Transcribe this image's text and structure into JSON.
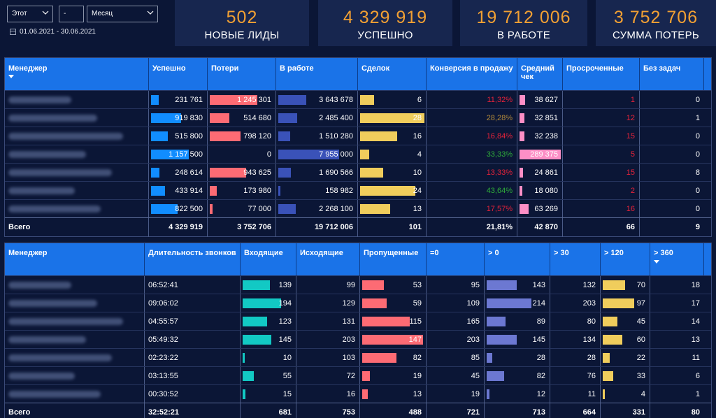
{
  "filters": {
    "period_type": "Этот",
    "period_count": "-",
    "period_unit": "Месяц",
    "date_range": "01.06.2021 - 30.06.2021"
  },
  "kpis": [
    {
      "value": "502",
      "label": "НОВЫЕ ЛИДЫ"
    },
    {
      "value": "4 329 919",
      "label": "УСПЕШНО"
    },
    {
      "value": "19 712 006",
      "label": "В РАБОТЕ"
    },
    {
      "value": "3 752 706",
      "label": "СУММА ПОТЕРЬ"
    }
  ],
  "colors": {
    "accent_orange": "#f2a033",
    "header_blue": "#1a73e8",
    "background": "#0b1636",
    "red_text": "#e8233a",
    "green_text": "#2fae3a",
    "brown_text": "#b0883b"
  },
  "sales_table": {
    "columns": [
      "Менеджер",
      "Успешно",
      "Потери",
      "В работе",
      "Сделок",
      "Конверсия в продажу",
      "Средний чек",
      "Просроченные",
      "Без задач"
    ],
    "rows": [
      {
        "success": "231 761",
        "losses": "1 245 301",
        "in_work": "3 643 678",
        "deals": "6",
        "conversion": "11,32%",
        "avg_check": "38 627",
        "overdue": "1",
        "no_tasks": "0"
      },
      {
        "success": "919 830",
        "losses": "514 680",
        "in_work": "2 485 400",
        "deals": "28",
        "conversion": "28,28%",
        "avg_check": "32 851",
        "overdue": "12",
        "no_tasks": "1"
      },
      {
        "success": "515 800",
        "losses": "798 120",
        "in_work": "1 510 280",
        "deals": "16",
        "conversion": "16,84%",
        "avg_check": "32 238",
        "overdue": "15",
        "no_tasks": "0"
      },
      {
        "success": "1 157 500",
        "losses": "0",
        "in_work": "7 955 000",
        "deals": "4",
        "conversion": "33,33%",
        "avg_check": "289 375",
        "overdue": "5",
        "no_tasks": "0"
      },
      {
        "success": "248 614",
        "losses": "943 625",
        "in_work": "1 690 566",
        "deals": "10",
        "conversion": "13,33%",
        "avg_check": "24 861",
        "overdue": "15",
        "no_tasks": "8"
      },
      {
        "success": "433 914",
        "losses": "173 980",
        "in_work": "158 982",
        "deals": "24",
        "conversion": "43,64%",
        "avg_check": "18 080",
        "overdue": "2",
        "no_tasks": "0"
      },
      {
        "success": "822 500",
        "losses": "77 000",
        "in_work": "2 268 100",
        "deals": "13",
        "conversion": "17,57%",
        "avg_check": "63 269",
        "overdue": "16",
        "no_tasks": "0"
      }
    ],
    "total": {
      "label": "Всего",
      "success": "4 329 919",
      "losses": "3 752 706",
      "in_work": "19 712 006",
      "deals": "101",
      "conversion": "21,81%",
      "avg_check": "42 870",
      "overdue": "66",
      "no_tasks": "9"
    }
  },
  "calls_table": {
    "columns": [
      "Менеджер",
      "Длительность звонков",
      "Входящие",
      "Исходящие",
      "Пропущенные",
      "=0",
      "> 0",
      "> 30",
      "> 120",
      "> 360"
    ],
    "rows": [
      {
        "duration": "06:52:41",
        "incoming": "139",
        "outgoing": "99",
        "missed": "53",
        "eq0": "95",
        "gt0": "143",
        "gt30": "132",
        "gt120": "70",
        "gt360": "18"
      },
      {
        "duration": "09:06:02",
        "incoming": "194",
        "outgoing": "129",
        "missed": "59",
        "eq0": "109",
        "gt0": "214",
        "gt30": "203",
        "gt120": "97",
        "gt360": "17"
      },
      {
        "duration": "04:55:57",
        "incoming": "123",
        "outgoing": "131",
        "missed": "115",
        "eq0": "165",
        "gt0": "89",
        "gt30": "80",
        "gt120": "45",
        "gt360": "14"
      },
      {
        "duration": "05:49:32",
        "incoming": "145",
        "outgoing": "203",
        "missed": "147",
        "eq0": "203",
        "gt0": "145",
        "gt30": "134",
        "gt120": "60",
        "gt360": "13"
      },
      {
        "duration": "02:23:22",
        "incoming": "10",
        "outgoing": "103",
        "missed": "82",
        "eq0": "85",
        "gt0": "28",
        "gt30": "28",
        "gt120": "22",
        "gt360": "11"
      },
      {
        "duration": "03:13:55",
        "incoming": "55",
        "outgoing": "72",
        "missed": "19",
        "eq0": "45",
        "gt0": "82",
        "gt30": "76",
        "gt120": "33",
        "gt360": "6"
      },
      {
        "duration": "00:30:52",
        "incoming": "15",
        "outgoing": "16",
        "missed": "13",
        "eq0": "19",
        "gt0": "12",
        "gt30": "11",
        "gt120": "4",
        "gt360": "1"
      }
    ],
    "total": {
      "label": "Всего",
      "duration": "32:52:21",
      "incoming": "681",
      "outgoing": "753",
      "missed": "488",
      "eq0": "721",
      "gt0": "713",
      "gt30": "664",
      "gt120": "331",
      "gt360": "80"
    }
  }
}
